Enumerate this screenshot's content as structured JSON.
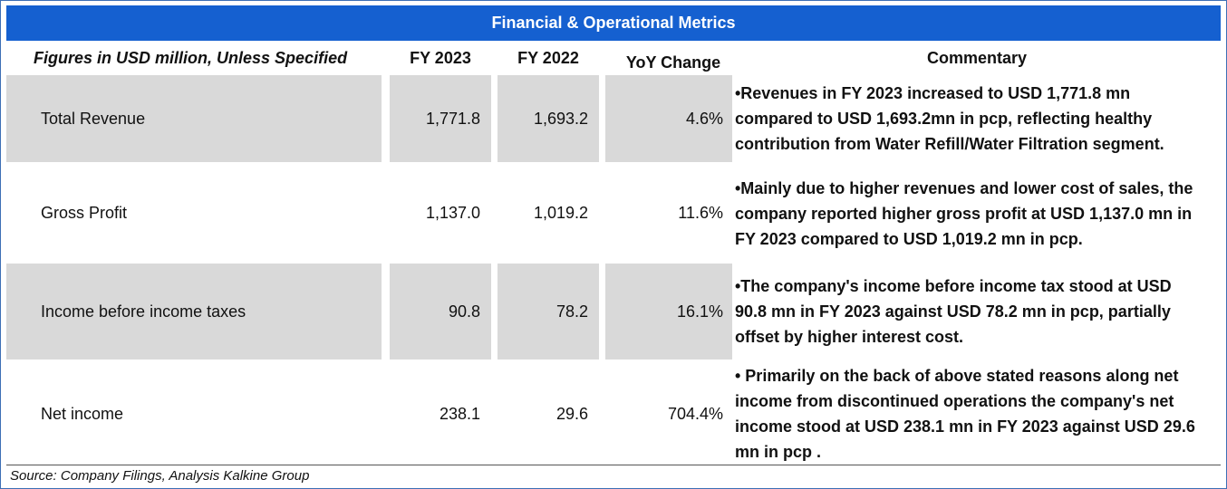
{
  "title": "Financial & Operational Metrics",
  "headers": {
    "label": "Figures in USD million, Unless Specified",
    "fy2023": "FY 2023",
    "fy2022": "FY 2022",
    "yoy": "YoY Change",
    "commentary": "Commentary"
  },
  "rows": [
    {
      "label": "Total Revenue",
      "fy2023": "1,771.8",
      "fy2022": "1,693.2",
      "yoy": "4.6%",
      "shaded": true,
      "commentary": [
        "•Revenues in FY 2023 increased to USD 1,771.8 mn",
        "compared to USD 1,693.2mn in pcp, reflecting healthy",
        "contribution from Water Refill/Water Filtration segment."
      ]
    },
    {
      "label": "Gross Profit",
      "fy2023": "1,137.0",
      "fy2022": "1,019.2",
      "yoy": "11.6%",
      "shaded": false,
      "commentary": [
        "•Mainly due to higher revenues and lower cost of sales, the",
        "company reported higher gross profit at USD 1,137.0 mn in",
        "FY 2023 compared to USD 1,019.2 mn in pcp."
      ]
    },
    {
      "label": "Income before income taxes",
      "fy2023": "90.8",
      "fy2022": "78.2",
      "yoy": "16.1%",
      "shaded": true,
      "commentary": [
        "•The company's income before income tax stood at USD",
        "90.8 mn in FY 2023 against USD 78.2 mn in pcp, partially",
        "offset by higher interest cost."
      ]
    },
    {
      "label": "Net income",
      "fy2023": "238.1",
      "fy2022": "29.6",
      "yoy": "704.4%",
      "shaded": false,
      "commentary": [
        "• Primarily on the back of above stated reasons along net",
        "income from discontinued operations the company's net",
        "income stood at USD 238.1 mn in FY 2023 against USD 29.6",
        "mn in pcp ."
      ]
    }
  ],
  "source": "Source: Company Filings, Analysis Kalkine Group",
  "colors": {
    "title_bg": "#1560d0",
    "shade": "#d9d9d9"
  }
}
